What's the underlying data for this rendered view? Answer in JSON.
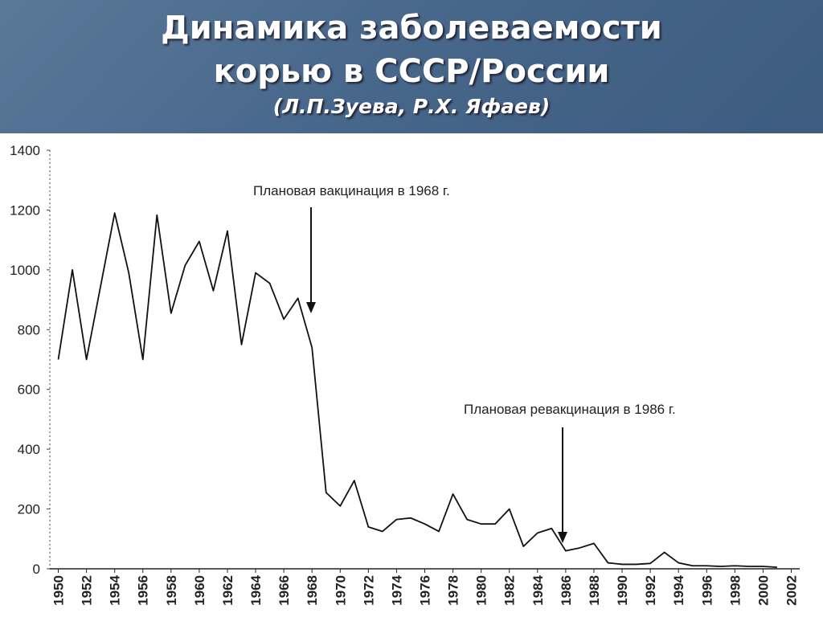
{
  "chart_data": {
    "type": "line",
    "title": [
      "Динамика заболеваемости",
      "корью в СССР/России"
    ],
    "subtitle": "(Л.П.Зуева, Р.Х. Яфаев)",
    "x": [
      1950,
      1951,
      1952,
      1954,
      1955,
      1956,
      1957,
      1958,
      1959,
      1960,
      1961,
      1962,
      1963,
      1964,
      1965,
      1966,
      1967,
      1968,
      1969,
      1970,
      1971,
      1972,
      1973,
      1974,
      1975,
      1976,
      1977,
      1978,
      1979,
      1980,
      1981,
      1982,
      1983,
      1984,
      1985,
      1986,
      1987,
      1988,
      1989,
      1990,
      1991,
      1992,
      1993,
      1994,
      1995,
      1996,
      1997,
      1998,
      1999,
      2000,
      2001
    ],
    "series": [
      {
        "color": "#111111",
        "values": [
          700,
          1000,
          700,
          1190,
          990,
          700,
          1183,
          855,
          1015,
          1095,
          930,
          1130,
          750,
          990,
          955,
          835,
          905,
          740,
          255,
          210,
          295,
          140,
          125,
          165,
          170,
          150,
          125,
          250,
          165,
          150,
          150,
          200,
          75,
          120,
          135,
          60,
          70,
          85,
          20,
          15,
          15,
          18,
          55,
          20,
          10,
          10,
          8,
          10,
          8,
          8,
          5
        ]
      }
    ],
    "xlim": [
      1949.4,
      2002.6
    ],
    "xticks": [
      1950,
      1952,
      1954,
      1956,
      1958,
      1960,
      1962,
      1964,
      1966,
      1968,
      1970,
      1972,
      1974,
      1976,
      1978,
      1980,
      1982,
      1984,
      1986,
      1988,
      1990,
      1992,
      1994,
      1996,
      1998,
      2000,
      2002
    ],
    "ylim": [
      0,
      1400
    ],
    "yticks": [
      0,
      200,
      400,
      600,
      800,
      1000,
      1200,
      1400
    ],
    "grid": false,
    "annotations": [
      "Плановая вакцинация в 1968 г.",
      "Плановая ревакцинация в 1986 г."
    ]
  }
}
